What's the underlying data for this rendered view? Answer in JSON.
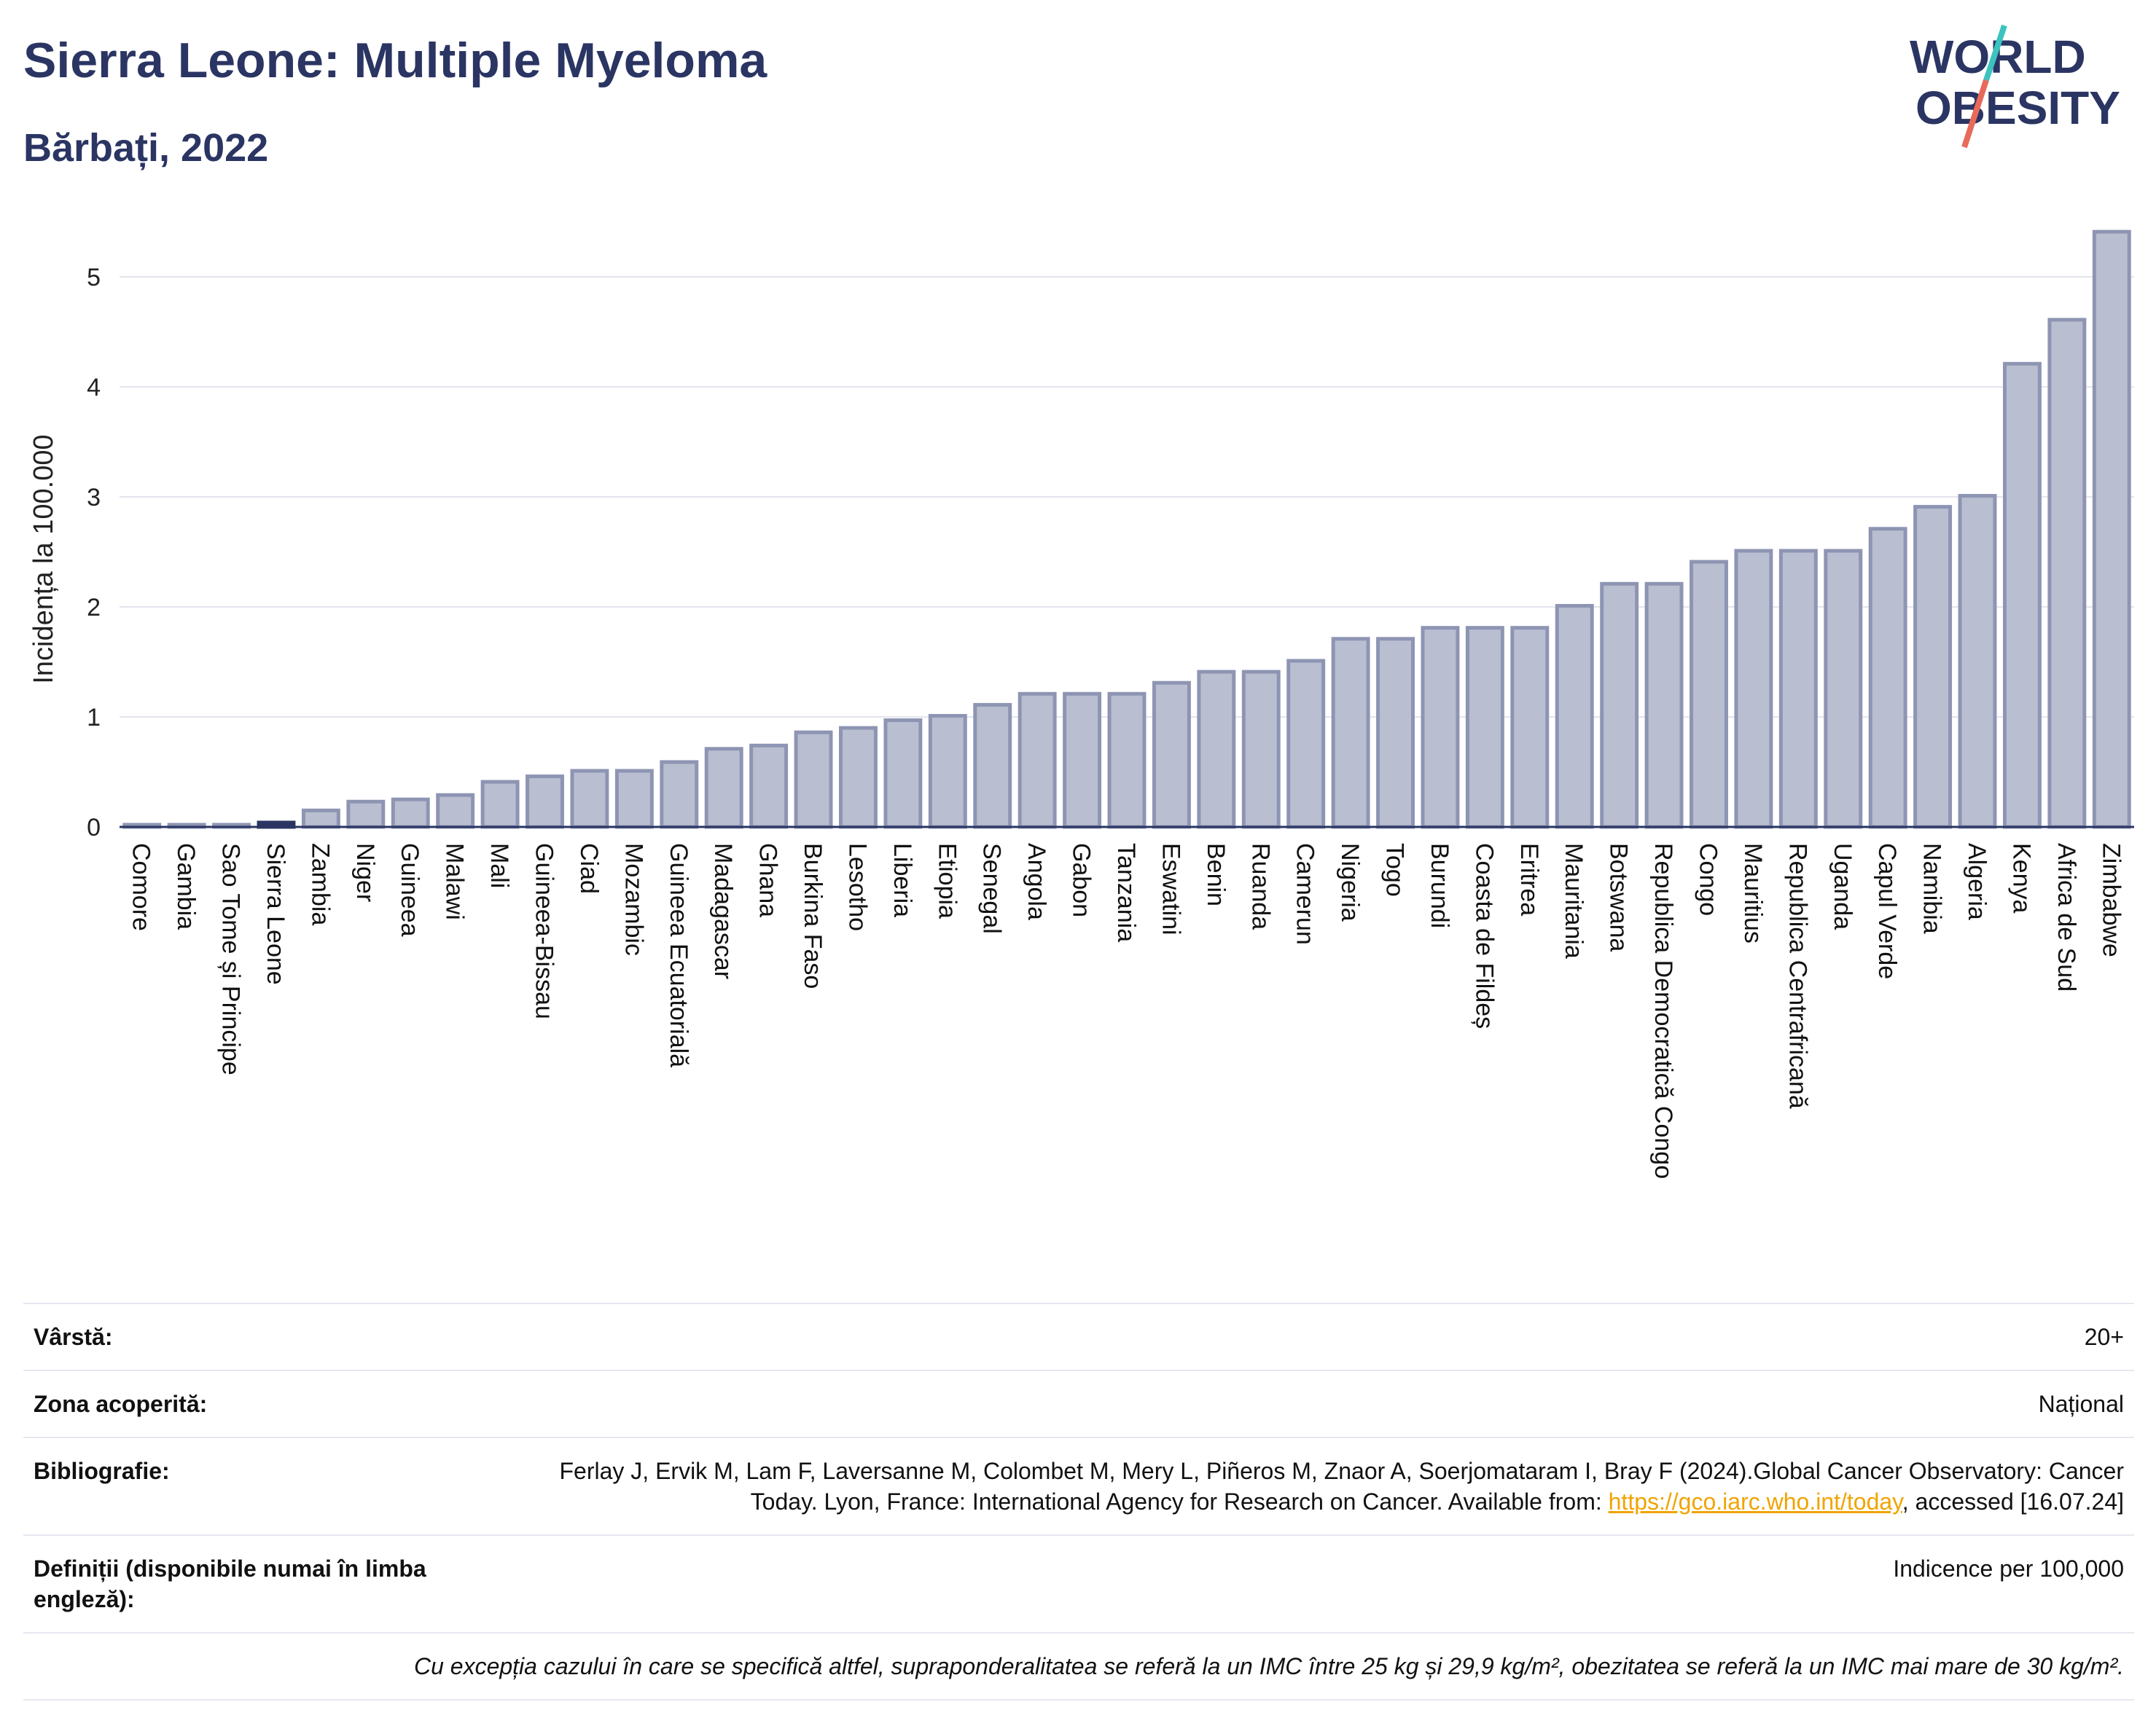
{
  "header": {
    "title": "Sierra Leone: Multiple Myeloma",
    "subtitle": "Bărbați, 2022",
    "logo_line1": "WORLD",
    "logo_line2": "OBESITY"
  },
  "colors": {
    "bar": "#b9bed0",
    "bar_border": "#8e95b3",
    "highlight": "#2b3563",
    "grid": "#e3e5ee",
    "axis": "#2b3563",
    "logo_teal": "#3cc3c0",
    "logo_coral": "#e86a5a"
  },
  "chart_data": {
    "type": "bar",
    "title": "Sierra Leone: Multiple Myeloma",
    "subtitle": "Bărbați, 2022",
    "xlabel": "",
    "ylabel": "Incidența la 100.000",
    "ylim": [
      0,
      5.5
    ],
    "yticks": [
      0,
      1,
      2,
      3,
      4,
      5
    ],
    "grid": true,
    "highlight": "Sierra Leone",
    "categories": [
      "Comore",
      "Gambia",
      "Sao Tome și Principe",
      "Sierra Leone",
      "Zambia",
      "Niger",
      "Guineea",
      "Malawi",
      "Mali",
      "Guineea-Bissau",
      "Ciad",
      "Mozambic",
      "Guineea Ecuatorială",
      "Madagascar",
      "Ghana",
      "Burkina Faso",
      "Lesotho",
      "Liberia",
      "Etiopia",
      "Senegal",
      "Angola",
      "Gabon",
      "Tanzania",
      "Eswatini",
      "Benin",
      "Ruanda",
      "Camerun",
      "Nigeria",
      "Togo",
      "Burundi",
      "Coasta de Fildeș",
      "Eritrea",
      "Mauritania",
      "Botswana",
      "Republica Democratică Congo",
      "Congo",
      "Mauritius",
      "Republica Centrafricană",
      "Uganda",
      "Capul Verde",
      "Namibia",
      "Algeria",
      "Kenya",
      "Africa de Sud",
      "Zimbabwe"
    ],
    "values": [
      0.02,
      0.02,
      0.02,
      0.04,
      0.15,
      0.23,
      0.25,
      0.29,
      0.41,
      0.46,
      0.51,
      0.51,
      0.59,
      0.71,
      0.74,
      0.86,
      0.9,
      0.97,
      1.01,
      1.11,
      1.21,
      1.21,
      1.21,
      1.31,
      1.41,
      1.41,
      1.51,
      1.71,
      1.71,
      1.81,
      1.81,
      1.81,
      2.01,
      2.21,
      2.21,
      2.41,
      2.51,
      2.51,
      2.51,
      2.71,
      2.91,
      3.01,
      4.21,
      4.61,
      5.41
    ]
  },
  "info": {
    "age_label": "Vârstă:",
    "age_value": "20+",
    "coverage_label": "Zona acoperită:",
    "coverage_value": "Național",
    "biblio_label": "Bibliografie:",
    "biblio_text": "Ferlay J, Ervik M, Lam F, Laversanne M, Colombet M, Mery L, Piñeros M, Znaor A, Soerjomataram I, Bray F (2024).Global Cancer Observatory: Cancer Today. Lyon, France: International Agency for Research on Cancer. Available from: ",
    "biblio_link": "https://gco.iarc.who.int/today",
    "biblio_tail": ", accessed [16.07.24]",
    "definitions_label": "Definiții (disponibile numai în limba engleză):",
    "definitions_value": "Indicence per 100,000",
    "footnote": "Cu excepția cazului în care se specifică altfel, supraponderalitatea se referă la un IMC între 25 kg și 29,9 kg/m², obezitatea se referă la un IMC mai mare de 30 kg/m²."
  }
}
